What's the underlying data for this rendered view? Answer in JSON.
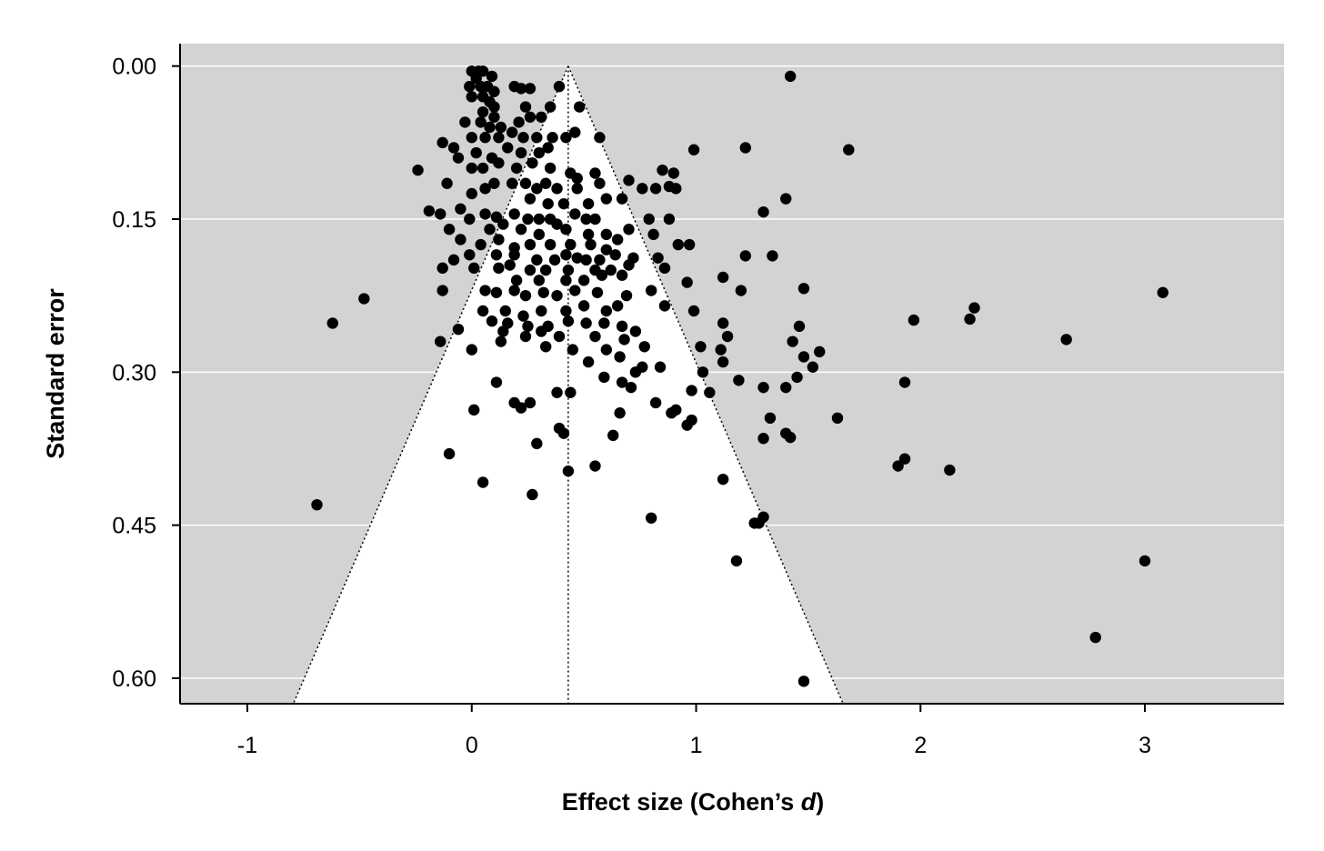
{
  "chart_data": {
    "type": "scatter",
    "subtype": "funnel-plot",
    "title": "",
    "xlabel_main": "Effect size (Cohen’s ",
    "xlabel_italic": "d",
    "xlabel_close": ")",
    "ylabel": "Standard error",
    "xlim": [
      -1.3,
      3.62
    ],
    "ylim": [
      -0.022,
      0.625
    ],
    "y_reversed": true,
    "x_ticks": [
      -1,
      0,
      1,
      2,
      3
    ],
    "x_tick_labels": [
      "-1",
      "0",
      "1",
      "2",
      "3"
    ],
    "y_ticks": [
      0.0,
      0.15,
      0.3,
      0.45,
      0.6
    ],
    "y_tick_labels": [
      "0.00",
      "0.15",
      "0.30",
      "0.45",
      "0.60"
    ],
    "grid": "horizontal",
    "colors": {
      "outside_funnel": "#d3d3d3",
      "inside_funnel": "#ffffff",
      "points": "#000000",
      "gridlines": "#ffffff"
    },
    "funnel": {
      "center": 0.43,
      "z": 1.96,
      "se_max": 0.625
    },
    "points": [
      [
        0.0,
        0.005
      ],
      [
        0.03,
        0.005
      ],
      [
        0.05,
        0.005
      ],
      [
        0.09,
        0.01
      ],
      [
        0.02,
        0.012
      ],
      [
        -0.01,
        0.02
      ],
      [
        0.04,
        0.02
      ],
      [
        0.07,
        0.02
      ],
      [
        0.1,
        0.025
      ],
      [
        0.19,
        0.02
      ],
      [
        0.22,
        0.022
      ],
      [
        0.26,
        0.022
      ],
      [
        0.0,
        0.03
      ],
      [
        0.05,
        0.03
      ],
      [
        0.08,
        0.035
      ],
      [
        0.1,
        0.04
      ],
      [
        0.39,
        0.02
      ],
      [
        0.05,
        0.045
      ],
      [
        0.1,
        0.05
      ],
      [
        0.24,
        0.04
      ],
      [
        0.35,
        0.04
      ],
      [
        0.48,
        0.04
      ],
      [
        0.04,
        0.055
      ],
      [
        0.08,
        0.06
      ],
      [
        0.13,
        0.06
      ],
      [
        -0.03,
        0.055
      ],
      [
        0.21,
        0.055
      ],
      [
        0.26,
        0.05
      ],
      [
        0.31,
        0.05
      ],
      [
        1.42,
        0.01
      ],
      [
        0.0,
        0.07
      ],
      [
        0.06,
        0.07
      ],
      [
        0.12,
        0.07
      ],
      [
        0.18,
        0.065
      ],
      [
        0.23,
        0.07
      ],
      [
        0.29,
        0.07
      ],
      [
        0.36,
        0.07
      ],
      [
        0.42,
        0.07
      ],
      [
        0.46,
        0.065
      ],
      [
        0.57,
        0.07
      ],
      [
        -0.13,
        0.075
      ],
      [
        -0.08,
        0.08
      ],
      [
        0.02,
        0.085
      ],
      [
        0.09,
        0.09
      ],
      [
        0.16,
        0.08
      ],
      [
        0.22,
        0.085
      ],
      [
        0.3,
        0.085
      ],
      [
        0.34,
        0.08
      ],
      [
        0.99,
        0.082
      ],
      [
        1.22,
        0.08
      ],
      [
        1.68,
        0.082
      ],
      [
        -0.06,
        0.09
      ],
      [
        0.0,
        0.1
      ],
      [
        0.05,
        0.1
      ],
      [
        0.12,
        0.095
      ],
      [
        0.2,
        0.1
      ],
      [
        0.27,
        0.095
      ],
      [
        0.35,
        0.1
      ],
      [
        0.44,
        0.105
      ],
      [
        0.47,
        0.11
      ],
      [
        0.55,
        0.105
      ],
      [
        -0.24,
        0.102
      ],
      [
        0.85,
        0.102
      ],
      [
        0.9,
        0.105
      ],
      [
        0.1,
        0.115
      ],
      [
        -0.11,
        0.115
      ],
      [
        0.18,
        0.115
      ],
      [
        0.24,
        0.115
      ],
      [
        0.29,
        0.12
      ],
      [
        0.33,
        0.115
      ],
      [
        0.38,
        0.12
      ],
      [
        0.47,
        0.12
      ],
      [
        0.57,
        0.115
      ],
      [
        0.7,
        0.112
      ],
      [
        0.76,
        0.12
      ],
      [
        0.82,
        0.12
      ],
      [
        0.88,
        0.118
      ],
      [
        0.91,
        0.12
      ],
      [
        0.0,
        0.125
      ],
      [
        0.06,
        0.12
      ],
      [
        0.26,
        0.13
      ],
      [
        0.34,
        0.135
      ],
      [
        0.41,
        0.135
      ],
      [
        0.52,
        0.135
      ],
      [
        0.6,
        0.13
      ],
      [
        0.67,
        0.13
      ],
      [
        1.4,
        0.13
      ],
      [
        -0.19,
        0.142
      ],
      [
        -0.14,
        0.145
      ],
      [
        -0.05,
        0.14
      ],
      [
        0.06,
        0.145
      ],
      [
        0.11,
        0.148
      ],
      [
        0.19,
        0.145
      ],
      [
        0.25,
        0.15
      ],
      [
        0.3,
        0.15
      ],
      [
        0.35,
        0.15
      ],
      [
        0.38,
        0.155
      ],
      [
        0.46,
        0.145
      ],
      [
        0.51,
        0.15
      ],
      [
        0.55,
        0.15
      ],
      [
        1.3,
        0.143
      ],
      [
        0.79,
        0.15
      ],
      [
        0.88,
        0.15
      ],
      [
        -0.1,
        0.16
      ],
      [
        -0.01,
        0.15
      ],
      [
        0.08,
        0.16
      ],
      [
        0.14,
        0.155
      ],
      [
        0.22,
        0.16
      ],
      [
        0.3,
        0.165
      ],
      [
        0.42,
        0.16
      ],
      [
        0.52,
        0.165
      ],
      [
        0.6,
        0.165
      ],
      [
        0.65,
        0.17
      ],
      [
        0.7,
        0.16
      ],
      [
        0.81,
        0.165
      ],
      [
        0.92,
        0.175
      ],
      [
        0.97,
        0.175
      ],
      [
        -0.05,
        0.17
      ],
      [
        0.04,
        0.175
      ],
      [
        0.12,
        0.17
      ],
      [
        0.19,
        0.178
      ],
      [
        0.26,
        0.175
      ],
      [
        0.35,
        0.175
      ],
      [
        0.44,
        0.175
      ],
      [
        0.53,
        0.175
      ],
      [
        0.6,
        0.18
      ],
      [
        -0.01,
        0.185
      ],
      [
        0.11,
        0.185
      ],
      [
        0.19,
        0.185
      ],
      [
        0.29,
        0.19
      ],
      [
        0.37,
        0.19
      ],
      [
        0.42,
        0.185
      ],
      [
        0.47,
        0.188
      ],
      [
        0.51,
        0.19
      ],
      [
        0.57,
        0.19
      ],
      [
        0.64,
        0.185
      ],
      [
        0.72,
        0.188
      ],
      [
        0.83,
        0.188
      ],
      [
        1.22,
        0.186
      ],
      [
        1.34,
        0.186
      ],
      [
        -0.13,
        0.198
      ],
      [
        -0.08,
        0.19
      ],
      [
        0.01,
        0.198
      ],
      [
        0.12,
        0.198
      ],
      [
        0.17,
        0.195
      ],
      [
        0.26,
        0.2
      ],
      [
        0.33,
        0.2
      ],
      [
        0.43,
        0.2
      ],
      [
        0.55,
        0.2
      ],
      [
        0.62,
        0.2
      ],
      [
        0.7,
        0.195
      ],
      [
        0.86,
        0.198
      ],
      [
        0.2,
        0.21
      ],
      [
        0.3,
        0.21
      ],
      [
        0.42,
        0.21
      ],
      [
        0.5,
        0.21
      ],
      [
        0.58,
        0.205
      ],
      [
        0.67,
        0.205
      ],
      [
        0.96,
        0.212
      ],
      [
        1.12,
        0.207
      ],
      [
        0.06,
        0.22
      ],
      [
        0.11,
        0.222
      ],
      [
        0.19,
        0.22
      ],
      [
        0.24,
        0.225
      ],
      [
        0.32,
        0.222
      ],
      [
        0.38,
        0.225
      ],
      [
        0.46,
        0.22
      ],
      [
        0.56,
        0.222
      ],
      [
        0.69,
        0.225
      ],
      [
        0.8,
        0.22
      ],
      [
        1.2,
        0.22
      ],
      [
        1.48,
        0.218
      ],
      [
        3.08,
        0.222
      ],
      [
        -0.48,
        0.228
      ],
      [
        -0.13,
        0.22
      ],
      [
        0.05,
        0.24
      ],
      [
        0.15,
        0.24
      ],
      [
        0.23,
        0.245
      ],
      [
        0.31,
        0.24
      ],
      [
        0.42,
        0.24
      ],
      [
        0.5,
        0.235
      ],
      [
        0.6,
        0.24
      ],
      [
        0.65,
        0.235
      ],
      [
        0.86,
        0.235
      ],
      [
        0.99,
        0.24
      ],
      [
        2.24,
        0.237
      ],
      [
        -0.62,
        0.252
      ],
      [
        -0.06,
        0.258
      ],
      [
        0.09,
        0.25
      ],
      [
        0.16,
        0.252
      ],
      [
        0.25,
        0.255
      ],
      [
        0.34,
        0.255
      ],
      [
        0.43,
        0.25
      ],
      [
        0.51,
        0.252
      ],
      [
        0.59,
        0.252
      ],
      [
        0.67,
        0.255
      ],
      [
        0.73,
        0.26
      ],
      [
        1.12,
        0.252
      ],
      [
        1.46,
        0.255
      ],
      [
        1.97,
        0.249
      ],
      [
        2.22,
        0.248
      ],
      [
        -0.14,
        0.27
      ],
      [
        0.14,
        0.26
      ],
      [
        0.24,
        0.265
      ],
      [
        0.31,
        0.26
      ],
      [
        0.39,
        0.265
      ],
      [
        0.55,
        0.265
      ],
      [
        0.68,
        0.268
      ],
      [
        0.77,
        0.275
      ],
      [
        1.14,
        0.265
      ],
      [
        2.65,
        0.268
      ],
      [
        0.0,
        0.278
      ],
      [
        0.13,
        0.27
      ],
      [
        0.33,
        0.275
      ],
      [
        0.45,
        0.278
      ],
      [
        0.6,
        0.278
      ],
      [
        0.66,
        0.285
      ],
      [
        1.02,
        0.275
      ],
      [
        1.11,
        0.278
      ],
      [
        1.43,
        0.27
      ],
      [
        1.52,
        0.295
      ],
      [
        1.55,
        0.28
      ],
      [
        0.52,
        0.29
      ],
      [
        0.73,
        0.3
      ],
      [
        0.76,
        0.295
      ],
      [
        0.84,
        0.295
      ],
      [
        1.03,
        0.3
      ],
      [
        1.12,
        0.29
      ],
      [
        1.48,
        0.285
      ],
      [
        0.59,
        0.305
      ],
      [
        0.67,
        0.31
      ],
      [
        0.11,
        0.31
      ],
      [
        1.19,
        0.308
      ],
      [
        1.3,
        0.315
      ],
      [
        1.4,
        0.315
      ],
      [
        1.45,
        0.305
      ],
      [
        1.93,
        0.31
      ],
      [
        0.71,
        0.315
      ],
      [
        0.98,
        0.318
      ],
      [
        1.06,
        0.32
      ],
      [
        0.38,
        0.32
      ],
      [
        0.44,
        0.32
      ],
      [
        0.19,
        0.33
      ],
      [
        0.26,
        0.33
      ],
      [
        0.82,
        0.33
      ],
      [
        0.22,
        0.335
      ],
      [
        0.01,
        0.337
      ],
      [
        0.66,
        0.34
      ],
      [
        0.89,
        0.34
      ],
      [
        0.91,
        0.337
      ],
      [
        0.98,
        0.347
      ],
      [
        1.33,
        0.345
      ],
      [
        1.63,
        0.345
      ],
      [
        0.39,
        0.355
      ],
      [
        0.96,
        0.352
      ],
      [
        0.41,
        0.36
      ],
      [
        1.4,
        0.36
      ],
      [
        0.63,
        0.362
      ],
      [
        1.3,
        0.365
      ],
      [
        1.42,
        0.364
      ],
      [
        0.29,
        0.37
      ],
      [
        -0.1,
        0.38
      ],
      [
        1.93,
        0.385
      ],
      [
        1.9,
        0.392
      ],
      [
        0.55,
        0.392
      ],
      [
        0.43,
        0.397
      ],
      [
        2.13,
        0.396
      ],
      [
        0.05,
        0.408
      ],
      [
        1.12,
        0.405
      ],
      [
        0.27,
        0.42
      ],
      [
        -0.69,
        0.43
      ],
      [
        1.3,
        0.442
      ],
      [
        1.26,
        0.448
      ],
      [
        1.28,
        0.448
      ],
      [
        0.8,
        0.443
      ],
      [
        1.18,
        0.485
      ],
      [
        3.0,
        0.485
      ],
      [
        2.78,
        0.56
      ],
      [
        1.48,
        0.603
      ]
    ]
  }
}
